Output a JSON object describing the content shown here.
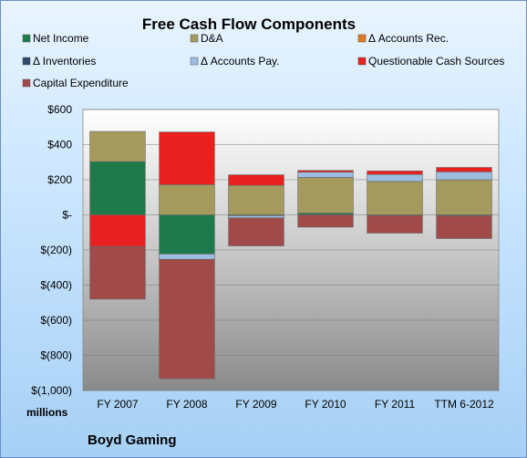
{
  "chart_data": {
    "type": "bar",
    "stacked": true,
    "title": "Free Cash Flow Components",
    "categories": [
      "FY 2007",
      "FY 2008",
      "FY 2009",
      "FY 2010",
      "FY 2011",
      "TTM 6-2012"
    ],
    "series": [
      {
        "name": "Net Income",
        "color": "#1e7a4a",
        "values": [
          303,
          -223,
          -5,
          10,
          -4,
          -5
        ]
      },
      {
        "name": "D&A",
        "color": "#a59a5e",
        "values": [
          172,
          172,
          168,
          203,
          190,
          200
        ]
      },
      {
        "name": "Δ Accounts Rec.",
        "color": "#e07a20",
        "values": [
          0,
          0,
          0,
          0,
          0,
          0
        ]
      },
      {
        "name": "Δ Inventories",
        "color": "#2e4a6a",
        "values": [
          0,
          0,
          0,
          0,
          0,
          0
        ]
      },
      {
        "name": "Δ Accounts Pay.",
        "color": "#9dbde0",
        "values": [
          0,
          -30,
          -12,
          30,
          40,
          45
        ]
      },
      {
        "name": "Questionable Cash Sources",
        "color": "#e82020",
        "values": [
          -180,
          300,
          60,
          10,
          20,
          25
        ]
      },
      {
        "name": "Capital Expenditure",
        "color": "#a04a4a",
        "values": [
          -300,
          -680,
          -160,
          -70,
          -100,
          -130
        ]
      }
    ],
    "ylim": [
      -1000,
      600
    ],
    "yticks": [
      600,
      400,
      200,
      0,
      -200,
      -400,
      -600,
      -800,
      -1000
    ],
    "ytick_labels": [
      "$600",
      "$400",
      "$200",
      "$-",
      "$(200)",
      "$(400)",
      "$(600)",
      "$(800)",
      "$(1,000)"
    ],
    "unit_label": "millions",
    "company": "Boyd Gaming",
    "legend_position": "top",
    "grid": true
  }
}
